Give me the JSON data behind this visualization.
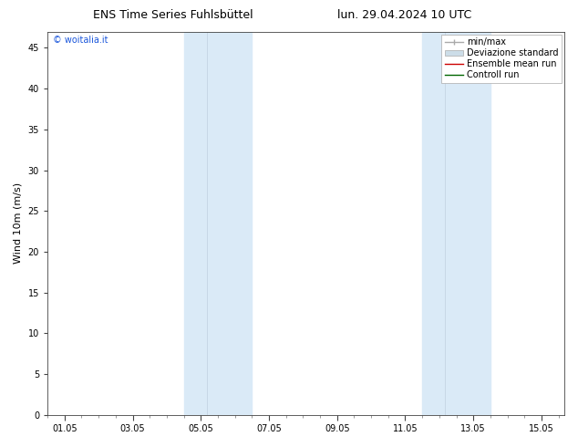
{
  "title_left": "ENS Time Series Fuhlsbüttel",
  "title_right": "lun. 29.04.2024 10 UTC",
  "ylabel": "Wind 10m (m/s)",
  "watermark": "© woitalia.it",
  "watermark_color": "#1a56db",
  "xtick_labels": [
    "01.05",
    "03.05",
    "05.05",
    "07.05",
    "09.05",
    "11.05",
    "13.05",
    "15.05"
  ],
  "xtick_positions": [
    0,
    2,
    4,
    6,
    8,
    10,
    12,
    14
  ],
  "xlim": [
    -0.5,
    14.67
  ],
  "ylim": [
    0,
    47
  ],
  "ytick_positions": [
    0,
    5,
    10,
    15,
    20,
    25,
    30,
    35,
    40,
    45
  ],
  "bg_color": "#ffffff",
  "plot_bg_color": "#ffffff",
  "shaded_regions": [
    {
      "xstart": 3.5,
      "xend": 4.17,
      "color": "#daeaf7"
    },
    {
      "xstart": 4.17,
      "xend": 5.5,
      "color": "#daeaf7"
    },
    {
      "xstart": 10.5,
      "xend": 11.17,
      "color": "#daeaf7"
    },
    {
      "xstart": 11.17,
      "xend": 12.5,
      "color": "#daeaf7"
    }
  ],
  "shaded_dividers": [
    4.17,
    11.17
  ],
  "legend_entries": [
    {
      "label": "min/max",
      "color": "#aaaaaa",
      "lw": 1.0
    },
    {
      "label": "Deviazione standard",
      "color": "#ccdde8",
      "lw": 6.0
    },
    {
      "label": "Ensemble mean run",
      "color": "#cc0000",
      "lw": 1.0
    },
    {
      "label": "Controll run",
      "color": "#006600",
      "lw": 1.0
    }
  ],
  "title_fontsize": 9,
  "ylabel_fontsize": 8,
  "tick_fontsize": 7,
  "legend_fontsize": 7,
  "watermark_fontsize": 7
}
